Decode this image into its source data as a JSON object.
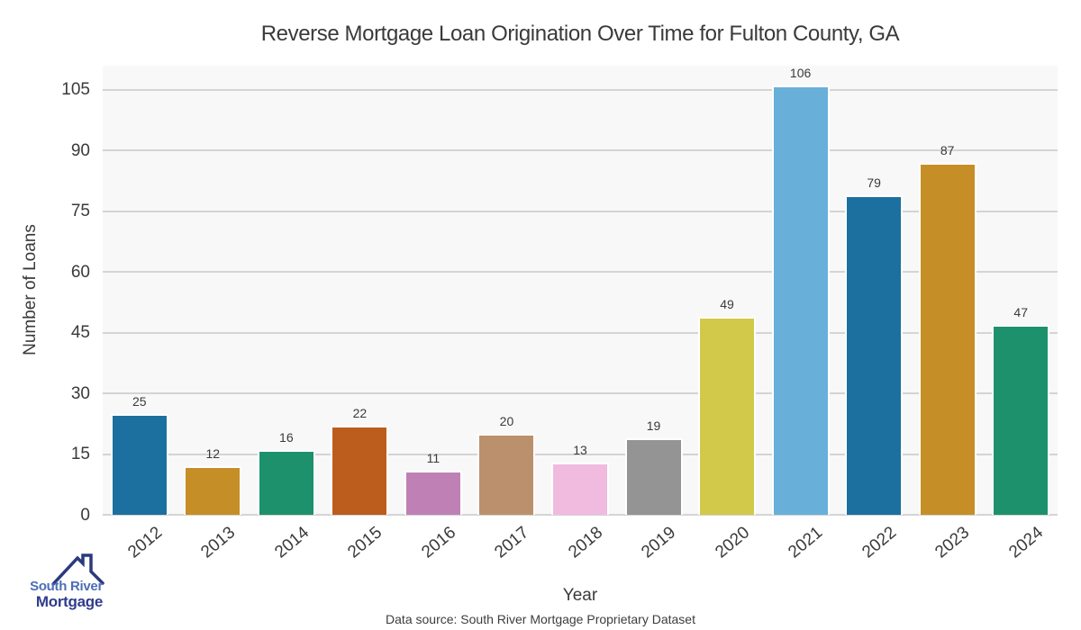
{
  "title": "Reverse Mortgage Loan Origination Over Time for Fulton County, GA",
  "chart_data": {
    "type": "bar",
    "title": "Reverse Mortgage Loan Origination Over Time for Fulton County, GA",
    "categories": [
      "2012",
      "2013",
      "2014",
      "2015",
      "2016",
      "2017",
      "2018",
      "2019",
      "2020",
      "2021",
      "2022",
      "2023",
      "2024"
    ],
    "values": [
      25,
      12,
      16,
      22,
      11,
      20,
      13,
      19,
      49,
      106,
      79,
      87,
      47
    ],
    "bar_colors": [
      "#1b709f",
      "#c68e26",
      "#1c916b",
      "#bc5d1d",
      "#bf81b5",
      "#bb906d",
      "#f1badf",
      "#949494",
      "#d2c94a",
      "#68b0d9",
      "#1b709f",
      "#c68e26",
      "#1c916b"
    ],
    "xlabel": "Year",
    "ylabel": "Number of Loans",
    "yticks": [
      0,
      15,
      30,
      45,
      60,
      75,
      90,
      105
    ],
    "ylim": [
      0,
      111
    ],
    "grid": "horizontal-major",
    "legend": "none",
    "plot_bg_color": "#f8f8f8",
    "gridline_color": "#d4d4d4",
    "text_color": "#3a3a3a"
  },
  "footer": {
    "data_source": "Data source: South River Mortgage Proprietary Dataset"
  },
  "logo": {
    "line1": "South River",
    "line2": "Mortgage",
    "line1_color": "#4d6fb5",
    "line2_color": "#2f3c8c",
    "roof_icon_color": "#2b3a7e"
  }
}
